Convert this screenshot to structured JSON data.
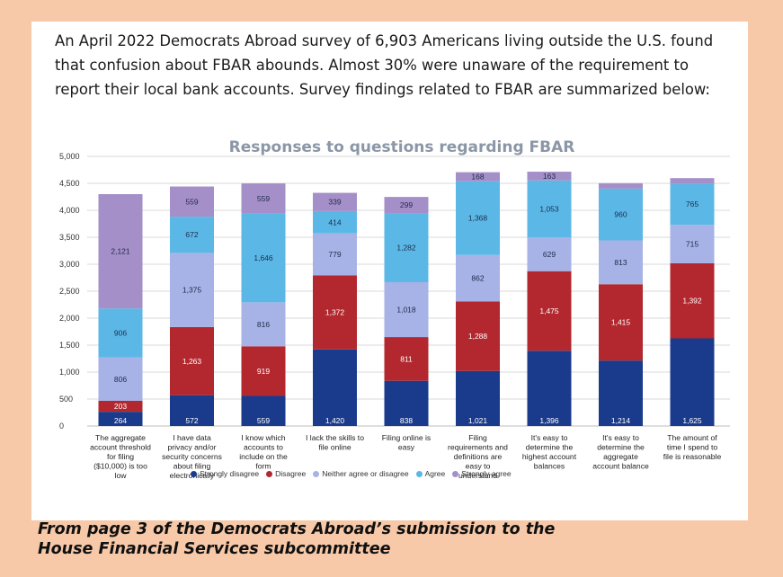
{
  "intro_text": "An April 2022 Democrats Abroad survey of 6,903 Americans living outside the U.S. found that confusion about FBAR abounds. Almost 30% were unaware of the requirement to report their local bank accounts. Survey findings related to FBAR are summarized below:",
  "caption": "From page 3 of the Democrats Abroad’s submission to the House Financial Services subcommittee",
  "chart_data": {
    "type": "bar",
    "stacked": true,
    "title": "Responses to questions regarding FBAR",
    "ylim": [
      0,
      5000
    ],
    "y_ticks": [
      "0",
      "500",
      "1,000",
      "1,500",
      "2,000",
      "2,500",
      "3,000",
      "3,500",
      "4,000",
      "4,500",
      "5,000"
    ],
    "grid": true,
    "legend_position": "bottom",
    "categories": [
      "The aggregate account threshold for filing ($10,000) is too low",
      "I have data privacy and/or security concerns about filing electronically",
      "I know which accounts to include on the form",
      "I lack the skills to file online",
      "Filing online is easy",
      "Filing requirements and definitions are easy to understand",
      "It's easy to determine the highest account balances",
      "It's easy to determine the aggregate account balance",
      "The amount of time I spend to file is reasonable"
    ],
    "category_lines": [
      [
        "The aggregate",
        "account threshold",
        "for filing",
        "($10,000) is too",
        "low"
      ],
      [
        "I have data",
        "privacy and/or",
        "security concerns",
        "about filing",
        "electronically"
      ],
      [
        "I know which",
        "accounts to",
        "include on the",
        "form"
      ],
      [
        "I lack the skills to",
        "file online"
      ],
      [
        "Filing online is",
        "easy"
      ],
      [
        "Filing",
        "requirements and",
        "definitions are",
        "easy to",
        "understand"
      ],
      [
        "It's easy to",
        "determine the",
        "highest account",
        "balances"
      ],
      [
        "It's easy to",
        "determine the",
        "aggregate",
        "account balance"
      ],
      [
        "The amount of",
        "time I spend to",
        "file is reasonable"
      ]
    ],
    "series": [
      {
        "name": "Strongly disagree",
        "color": "#1a3a8c",
        "values": [
          264,
          572,
          559,
          1420,
          838,
          1021,
          1396,
          1214,
          1625
        ]
      },
      {
        "name": "Disagree",
        "color": "#b2282e",
        "values": [
          203,
          1263,
          919,
          1372,
          811,
          1288,
          1475,
          1415,
          1392
        ]
      },
      {
        "name": "Neither agree or disagree",
        "color": "#a7b2e6",
        "values": [
          806,
          1375,
          816,
          779,
          1018,
          862,
          629,
          813,
          715
        ]
      },
      {
        "name": "Agree",
        "color": "#5bb8e6",
        "values": [
          906,
          672,
          1646,
          414,
          1282,
          1368,
          1053,
          960,
          765
        ]
      },
      {
        "name": "Strongly agree",
        "color": "#a58fc8",
        "values": [
          2121,
          559,
          559,
          339,
          299,
          168,
          163,
          100,
          100
        ]
      }
    ],
    "value_labels": [
      [
        "264",
        "572",
        "559",
        "1,420",
        "838",
        "1,021",
        "1,396",
        "1,214",
        "1,625"
      ],
      [
        "203",
        "1,263",
        "919",
        "1,372",
        "811",
        "1,288",
        "1,475",
        "1,415",
        "1,392"
      ],
      [
        "806",
        "1,375",
        "816",
        "779",
        "1,018",
        "862",
        "629",
        "813",
        "715"
      ],
      [
        "906",
        "672",
        "1,646",
        "414",
        "1,282",
        "1,368",
        "1,053",
        "960",
        "765"
      ],
      [
        "2,121",
        "559",
        "559",
        "339",
        "299",
        "168",
        "163",
        "",
        ""
      ]
    ]
  }
}
